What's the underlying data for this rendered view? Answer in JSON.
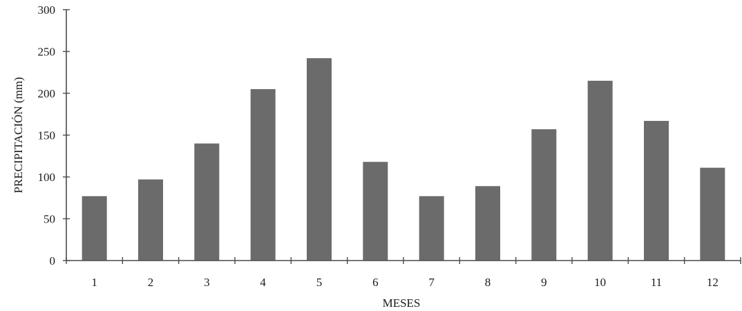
{
  "chart_data": {
    "type": "bar",
    "title": "",
    "xlabel": "MESES",
    "ylabel": "PRECIPITACIÓN (mm)",
    "categories": [
      "1",
      "2",
      "3",
      "4",
      "5",
      "6",
      "7",
      "8",
      "9",
      "10",
      "11",
      "12"
    ],
    "values": [
      77,
      97,
      140,
      205,
      242,
      118,
      77,
      89,
      157,
      215,
      167,
      111
    ],
    "ylim": [
      0,
      300
    ],
    "yticks": [
      0,
      50,
      100,
      150,
      200,
      250,
      300
    ],
    "grid": false,
    "legend": "none",
    "bar_color": "#6b6b6b"
  }
}
